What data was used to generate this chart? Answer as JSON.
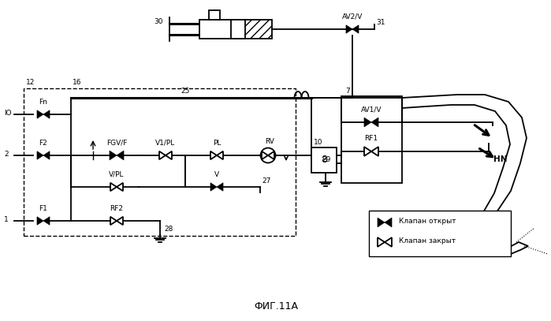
{
  "title": "ФИГ.11А",
  "bg_color": "#ffffff",
  "line_color": "#000000",
  "legend_open": "Клапан открыт",
  "legend_closed": "Клапан закрыт",
  "figsize": [
    6.99,
    4.07
  ],
  "dpi": 100
}
